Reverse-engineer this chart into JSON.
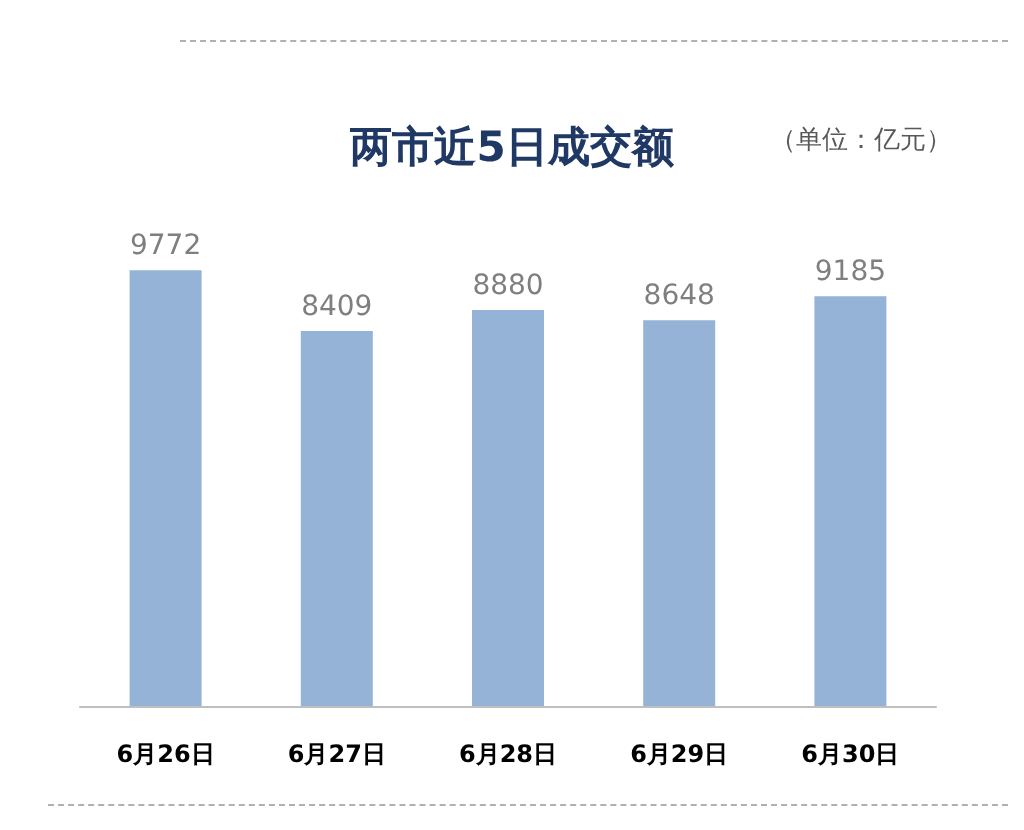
{
  "chart_data": {
    "type": "bar",
    "title": "两市近5日成交额",
    "annotations": [
      "（单位：亿元）"
    ],
    "categories": [
      "6月26日",
      "6月27日",
      "6月28日",
      "6月29日",
      "6月30日"
    ],
    "values": [
      9772,
      8409,
      8880,
      8648,
      9185
    ],
    "color": "#95b3d7",
    "data_labels": true
  }
}
